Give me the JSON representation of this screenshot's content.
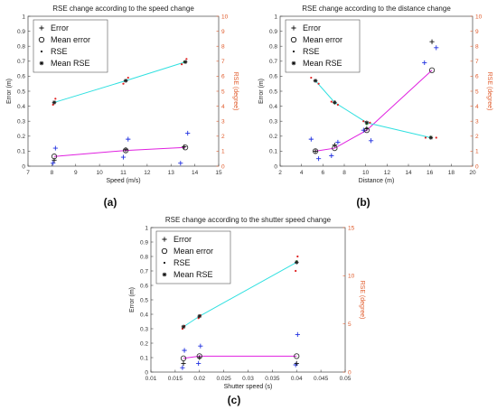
{
  "chart_data": [
    {
      "panel_label": "(a)",
      "type": "scatter",
      "title": "RSE change according to the speed change",
      "xlabel": "Speed (m/s)",
      "ylabel": "Error (m)",
      "y2label": "RSE (degree)",
      "xlim": [
        7,
        15
      ],
      "ylim": [
        0,
        1
      ],
      "y2lim": [
        0,
        10
      ],
      "xticks": [
        "7",
        "8",
        "9",
        "10",
        "11",
        "12",
        "13",
        "14",
        "15"
      ],
      "yticks": [
        "0",
        "0.1",
        "0.2",
        "0.3",
        "0.4",
        "0.5",
        "0.6",
        "0.7",
        "0.8",
        "0.9",
        "1"
      ],
      "y2ticks": [
        "0",
        "1",
        "2",
        "3",
        "4",
        "5",
        "6",
        "7",
        "8",
        "9",
        "10"
      ],
      "legend_placement": "top-left",
      "legend": [
        "Error",
        "Mean error",
        "RSE",
        "Mean RSE"
      ],
      "series": [
        {
          "name": "Error",
          "axis": "left",
          "x": [
            8.05,
            8.1,
            8.15,
            11.0,
            11.1,
            11.2,
            13.4,
            13.55,
            13.7
          ],
          "y": [
            0.02,
            0.04,
            0.12,
            0.06,
            0.11,
            0.18,
            0.02,
            0.13,
            0.22
          ]
        },
        {
          "name": "Mean error",
          "axis": "left",
          "x": [
            8.1,
            11.1,
            13.6
          ],
          "y": [
            0.065,
            0.105,
            0.125
          ]
        },
        {
          "name": "RSE",
          "axis": "right",
          "x": [
            8.05,
            8.1,
            8.15,
            11.0,
            11.1,
            11.2,
            13.45,
            13.55,
            13.65
          ],
          "y": [
            4.1,
            4.25,
            4.5,
            5.5,
            5.7,
            5.9,
            6.8,
            6.95,
            7.15
          ]
        },
        {
          "name": "Mean RSE",
          "axis": "right",
          "x": [
            8.1,
            11.1,
            13.6
          ],
          "y": [
            4.25,
            5.7,
            6.95
          ]
        }
      ]
    },
    {
      "panel_label": "(b)",
      "type": "scatter",
      "title": "RSE change according to the distance change",
      "xlabel": "Distance (m)",
      "ylabel": "Error (m)",
      "y2label": "RSE (degree)",
      "xlim": [
        2,
        20
      ],
      "ylim": [
        0,
        1
      ],
      "y2lim": [
        0,
        10
      ],
      "xticks": [
        "2",
        "4",
        "6",
        "8",
        "10",
        "12",
        "14",
        "16",
        "18",
        "20"
      ],
      "yticks": [
        "0",
        "0.1",
        "0.2",
        "0.3",
        "0.4",
        "0.5",
        "0.6",
        "0.7",
        "0.8",
        "0.9",
        "1"
      ],
      "y2ticks": [
        "0",
        "1",
        "2",
        "3",
        "4",
        "5",
        "6",
        "7",
        "8",
        "9",
        "10"
      ],
      "legend_placement": "top-left",
      "legend": [
        "Error",
        "Mean error",
        "RSE",
        "Mean RSE"
      ],
      "series": [
        {
          "name": "Error",
          "axis": "left",
          "x": [
            4.9,
            5.3,
            5.6,
            6.8,
            7.1,
            7.4,
            9.8,
            10.1,
            10.5,
            15.5,
            16.2,
            16.6
          ],
          "y": [
            0.18,
            0.1,
            0.05,
            0.07,
            0.14,
            0.16,
            0.24,
            0.25,
            0.17,
            0.69,
            0.83,
            0.79
          ]
        },
        {
          "name": "Mean error",
          "axis": "left",
          "x": [
            5.3,
            7.1,
            10.1,
            16.2
          ],
          "y": [
            0.1,
            0.12,
            0.24,
            0.64
          ]
        },
        {
          "name": "RSE",
          "axis": "right",
          "x": [
            4.9,
            5.3,
            5.6,
            6.8,
            7.1,
            7.4,
            9.8,
            10.1,
            10.4,
            15.6,
            16.1,
            16.6
          ],
          "y": [
            5.9,
            5.7,
            5.5,
            4.3,
            4.2,
            4.1,
            3.0,
            2.8,
            2.9,
            1.9,
            1.95,
            1.9
          ]
        },
        {
          "name": "Mean RSE",
          "axis": "right",
          "x": [
            5.3,
            7.1,
            10.1,
            16.1
          ],
          "y": [
            5.7,
            4.25,
            2.9,
            1.9
          ]
        }
      ]
    },
    {
      "panel_label": "(c)",
      "type": "scatter",
      "title": "RSE change according to the shutter speed change",
      "xlabel": "Shutter speed (s)",
      "ylabel": "Error (m)",
      "y2label": "RSE (degree)",
      "xlim": [
        0.01,
        0.05
      ],
      "ylim": [
        0,
        1
      ],
      "y2lim": [
        0,
        15
      ],
      "xticks": [
        "0.01",
        "0.015",
        "0.02",
        "0.025",
        "0.03",
        "0.035",
        "0.04",
        "0.045",
        "0.05"
      ],
      "yticks": [
        "0",
        "0.1",
        "0.2",
        "0.3",
        "0.4",
        "0.5",
        "0.6",
        "0.7",
        "0.8",
        "0.9",
        "1"
      ],
      "y2ticks": [
        "0",
        "5",
        "10",
        "15"
      ],
      "legend_placement": "top-left",
      "legend": [
        "Error",
        "Mean error",
        "RSE",
        "Mean RSE"
      ],
      "series": [
        {
          "name": "Error",
          "axis": "left",
          "x": [
            0.0165,
            0.0167,
            0.0169,
            0.0198,
            0.02,
            0.0202,
            0.0398,
            0.04,
            0.0402
          ],
          "y": [
            0.03,
            0.06,
            0.15,
            0.06,
            0.1,
            0.18,
            0.05,
            0.06,
            0.26
          ]
        },
        {
          "name": "Mean error",
          "axis": "left",
          "x": [
            0.0167,
            0.02,
            0.04
          ],
          "y": [
            0.095,
            0.11,
            0.11
          ]
        },
        {
          "name": "RSE",
          "axis": "right",
          "x": [
            0.0165,
            0.0167,
            0.0169,
            0.0198,
            0.02,
            0.0202,
            0.0398,
            0.04,
            0.0402
          ],
          "y": [
            4.5,
            4.7,
            4.8,
            5.6,
            5.8,
            5.9,
            10.5,
            11.5,
            12.0
          ]
        },
        {
          "name": "Mean RSE",
          "axis": "right",
          "x": [
            0.0167,
            0.02,
            0.04
          ],
          "y": [
            4.7,
            5.8,
            11.4
          ]
        }
      ]
    }
  ],
  "colors": {
    "mean_error_line": "#e020e0",
    "mean_rse_line": "#30e0e0",
    "error_points_primary": "#2030e0",
    "error_points_secondary": "#111111",
    "rse_points_primary": "#e02020",
    "rse_points_secondary": "#22cc22",
    "right_axis": "#e05a2a"
  }
}
